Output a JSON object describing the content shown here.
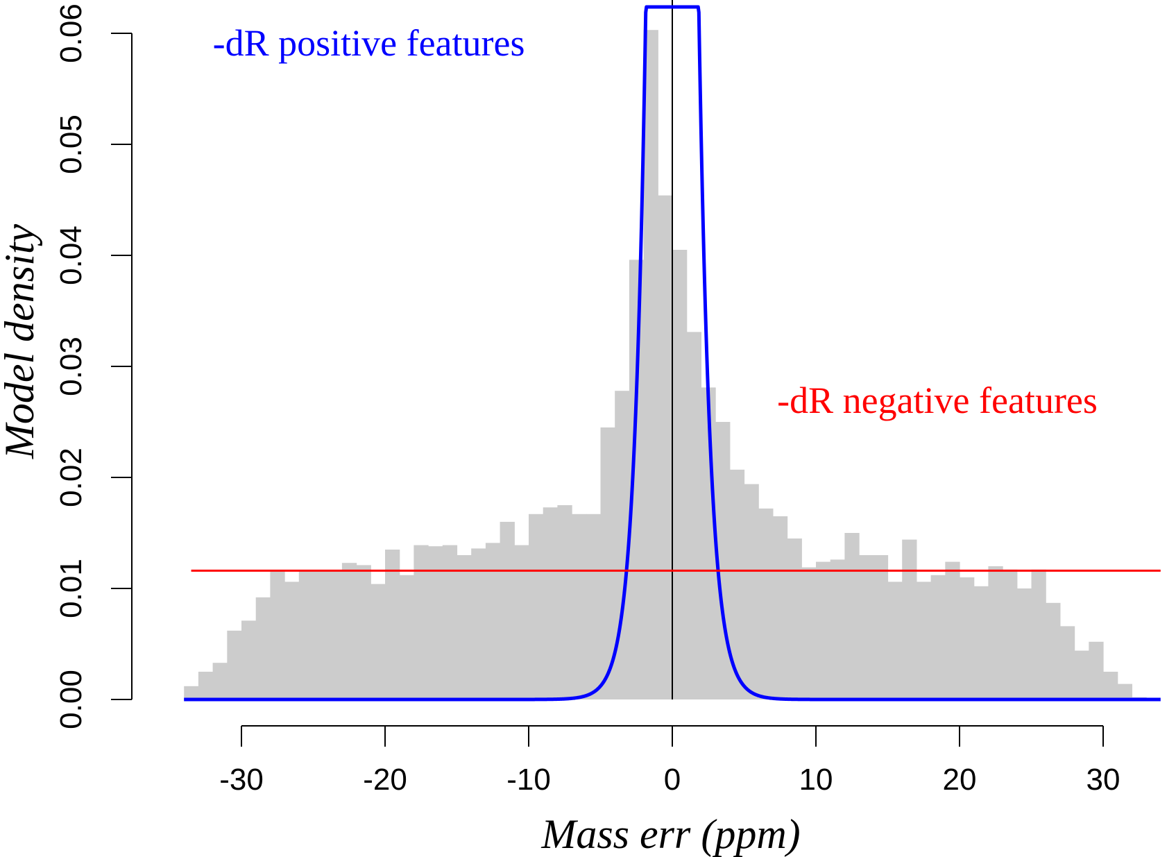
{
  "chart_data": {
    "type": "bar",
    "xlabel": "Mass err (ppm)",
    "ylabel": "Model density",
    "xlim": [
      -35,
      35
    ],
    "ylim": [
      0,
      0.06
    ],
    "x_ticks": [
      -30,
      -20,
      -10,
      0,
      10,
      20,
      30
    ],
    "y_ticks": [
      0,
      0.01,
      0.02,
      0.03,
      0.04,
      0.05,
      0.06
    ],
    "x_tick_labels": [
      "-30",
      "-20",
      "-10",
      "0",
      "10",
      "20",
      "30"
    ],
    "y_tick_labels": [
      "0.00",
      "0.01",
      "0.02",
      "0.03",
      "0.04",
      "0.05",
      "0.06"
    ],
    "grid": false,
    "histogram": {
      "bin_width": 1,
      "bin_start": -34,
      "color": "#cccccc",
      "values": [
        0.0012,
        0.0025,
        0.0033,
        0.0062,
        0.0071,
        0.0092,
        0.0116,
        0.0106,
        0.0116,
        0.0116,
        0.0116,
        0.0123,
        0.0121,
        0.0104,
        0.0135,
        0.0112,
        0.0139,
        0.0138,
        0.0139,
        0.013,
        0.0136,
        0.0141,
        0.016,
        0.0139,
        0.0167,
        0.0173,
        0.0175,
        0.0167,
        0.0167,
        0.0245,
        0.0278,
        0.0396,
        0.0603,
        0.0454,
        0.0405,
        0.0331,
        0.0281,
        0.025,
        0.0207,
        0.0194,
        0.0172,
        0.0165,
        0.0145,
        0.0119,
        0.0124,
        0.0126,
        0.015,
        0.013,
        0.013,
        0.0106,
        0.0144,
        0.0106,
        0.0112,
        0.0124,
        0.011,
        0.0102,
        0.012,
        0.0117,
        0.01,
        0.0117,
        0.0087,
        0.0066,
        0.0044,
        0.0052,
        0.0025,
        0.0014,
        0.0002
      ]
    },
    "series": [
      {
        "type": "line",
        "color": "#0000ff",
        "distribution": "laplace",
        "location": 0,
        "scale": 0.8,
        "range": [
          -34,
          34
        ]
      },
      {
        "type": "line",
        "color": "#ff0000",
        "x": [
          -33.5,
          34
        ],
        "y": [
          0.0116,
          0.0116
        ]
      }
    ],
    "vertical_line": {
      "x": 0,
      "color": "#000000"
    },
    "annotations": [
      {
        "text": "-dR positive features",
        "color": "#0000ff",
        "x": -32,
        "y": 0.058
      },
      {
        "text": "-dR negative features",
        "color": "#ff0000",
        "x": 7.3,
        "y": 0.0258
      }
    ]
  }
}
